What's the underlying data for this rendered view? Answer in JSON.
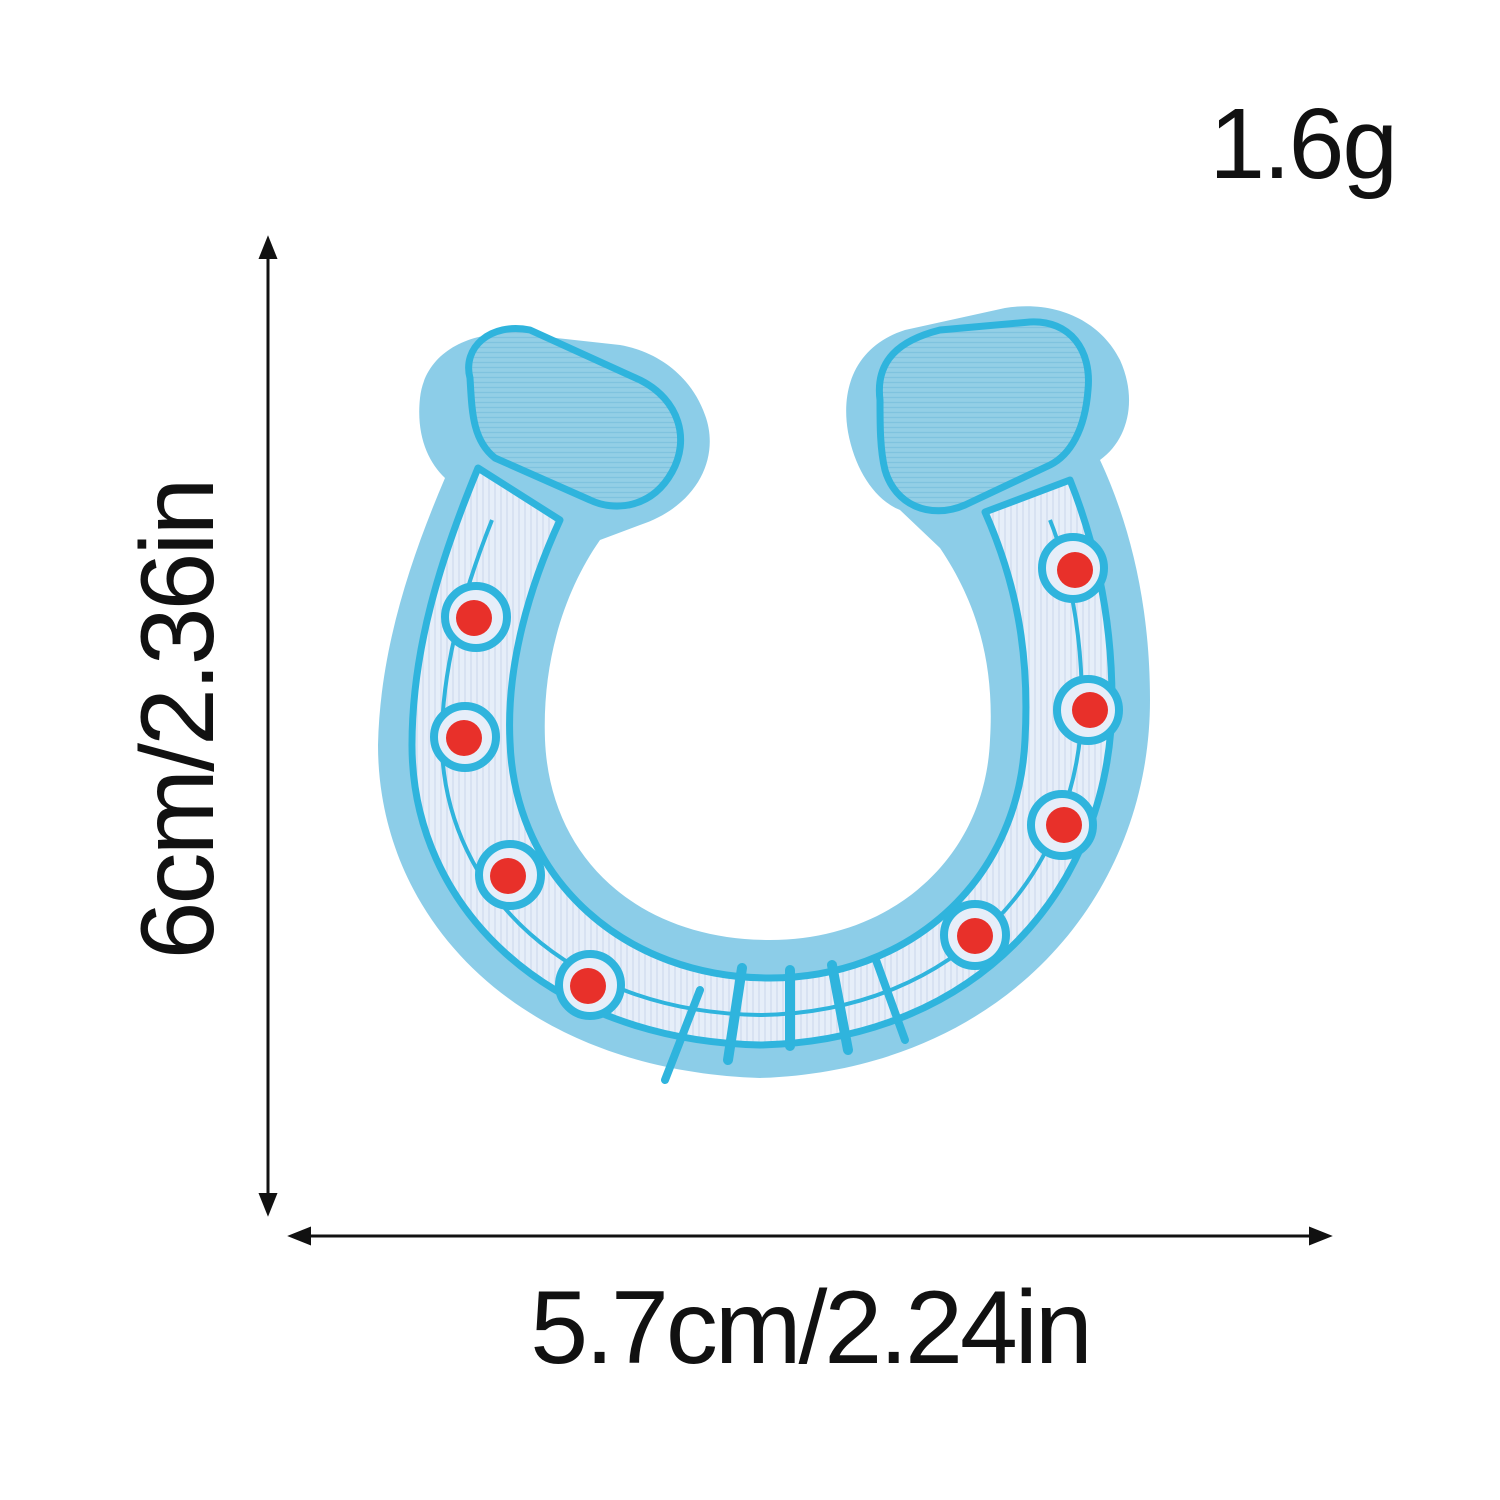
{
  "product": {
    "weight": "1.6g",
    "height_dimension": "6cm/2.36in",
    "width_dimension": "5.7cm/2.24in"
  },
  "colors": {
    "felt_backing": "#8ccde8",
    "satin_border": "#2fb4dd",
    "shoe_fill": "#e6eef9",
    "heel_fill": "#93cfe6",
    "nail_dot": "#e8302a",
    "arrow": "#111111"
  },
  "patch": {
    "subject": "horseshoe embroidered patch",
    "nail_holes_per_side": 4
  }
}
